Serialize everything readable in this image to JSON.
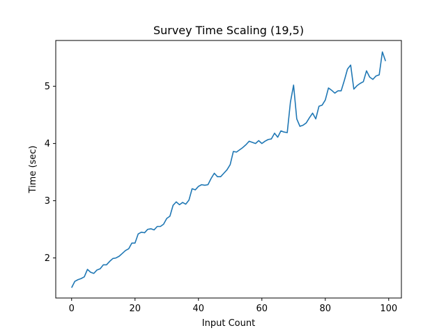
{
  "chart_data": {
    "type": "line",
    "title": "Survey Time Scaling (19,5)",
    "xlabel": "Input Count",
    "ylabel": "Time (sec)",
    "xlim": [
      -5,
      104
    ],
    "ylim": [
      1.3,
      5.8
    ],
    "xticks": [
      0,
      20,
      40,
      60,
      80,
      100
    ],
    "yticks": [
      2,
      3,
      4,
      5
    ],
    "grid": false,
    "series_color": "#1f77b4",
    "x": [
      0,
      1,
      2,
      3,
      4,
      5,
      6,
      7,
      8,
      9,
      10,
      11,
      12,
      13,
      14,
      15,
      16,
      17,
      18,
      19,
      20,
      21,
      22,
      23,
      24,
      25,
      26,
      27,
      28,
      29,
      30,
      31,
      32,
      33,
      34,
      35,
      36,
      37,
      38,
      39,
      40,
      41,
      42,
      43,
      44,
      45,
      46,
      47,
      48,
      49,
      50,
      51,
      52,
      53,
      54,
      55,
      56,
      57,
      58,
      59,
      60,
      61,
      62,
      63,
      64,
      65,
      66,
      67,
      68,
      69,
      70,
      71,
      72,
      73,
      74,
      75,
      76,
      77,
      78,
      79,
      80,
      81,
      82,
      83,
      84,
      85,
      86,
      87,
      88,
      89,
      90,
      91,
      92,
      93,
      94,
      95,
      96,
      97,
      98,
      99
    ],
    "values": [
      1.48,
      1.59,
      1.62,
      1.64,
      1.67,
      1.8,
      1.75,
      1.73,
      1.79,
      1.81,
      1.88,
      1.88,
      1.94,
      1.99,
      2.0,
      2.03,
      2.08,
      2.13,
      2.16,
      2.26,
      2.26,
      2.42,
      2.45,
      2.44,
      2.5,
      2.51,
      2.49,
      2.55,
      2.55,
      2.59,
      2.69,
      2.73,
      2.92,
      2.98,
      2.93,
      2.97,
      2.94,
      3.01,
      3.21,
      3.19,
      3.25,
      3.28,
      3.27,
      3.28,
      3.39,
      3.48,
      3.42,
      3.42,
      3.48,
      3.54,
      3.63,
      3.86,
      3.85,
      3.89,
      3.93,
      3.98,
      4.04,
      4.02,
      4.0,
      4.05,
      4.0,
      4.04,
      4.07,
      4.08,
      4.18,
      4.11,
      4.22,
      4.2,
      4.19,
      4.72,
      5.02,
      4.43,
      4.3,
      4.32,
      4.36,
      4.45,
      4.53,
      4.43,
      4.65,
      4.67,
      4.76,
      4.97,
      4.93,
      4.88,
      4.92,
      4.92,
      5.1,
      5.3,
      5.37,
      4.95,
      5.01,
      5.05,
      5.08,
      5.27,
      5.16,
      5.12,
      5.18,
      5.2,
      5.6,
      5.44
    ]
  }
}
